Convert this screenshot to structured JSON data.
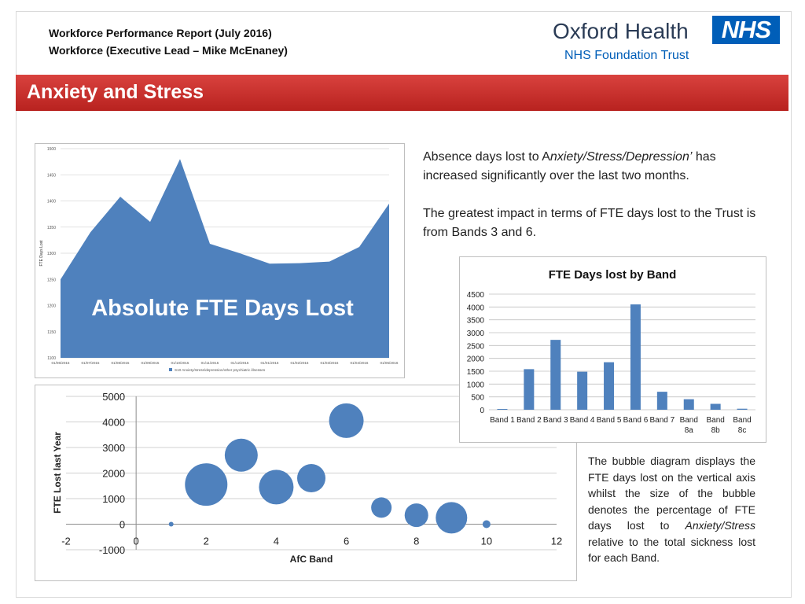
{
  "header": {
    "line1": "Workforce Performance Report (July 2016)",
    "line2": "Workforce (Executive Lead – Mike McEnaney)"
  },
  "logo": {
    "name": "Oxford Health",
    "subtitle": "NHS Foundation Trust",
    "badge": "NHS",
    "badge_color": "#005eb8"
  },
  "banner": {
    "title": "Anxiety and Stress",
    "color": "#c8302c"
  },
  "text": {
    "para1_pre": "Absence days lost to A",
    "para1_italic": "nxiety/Stress/Depression’",
    "para1_post": " has increased significantly over the last two months.",
    "para2": "The greatest impact in terms of FTE days lost to the Trust is from Bands 3 and 6.",
    "note_pre": "The bubble diagram  displays the FTE days lost on the vertical axis whilst the size of the bubble denotes the percentage of FTE days lost to ",
    "note_italic": "Anxiety/Stress",
    "note_post": " relative to the total sickness lost for each Band."
  },
  "chart_data": [
    {
      "type": "area",
      "overlay_title": "Absolute FTE Days Lost",
      "ylabel": "FTE Days Lost",
      "ylim": [
        1100,
        1500
      ],
      "yticks": [
        "1100",
        "1150",
        "1200",
        "1250",
        "1300",
        "1350",
        "1400",
        "1450",
        "1500"
      ],
      "xlabels": [
        "01/06/2015",
        "01/07/2015",
        "01/08/2015",
        "01/09/2015",
        "01/10/2015",
        "01/11/2015",
        "01/12/2015",
        "01/01/2016",
        "01/02/2016",
        "01/03/2016",
        "01/04/2016",
        "01/05/2016"
      ],
      "values": [
        1250,
        1340,
        1408,
        1360,
        1480,
        1318,
        1300,
        1280,
        1281,
        1284,
        1312,
        1395
      ],
      "legend": "S10 Anxiety/stress/depression/other psychiatric illnesses",
      "color": "#4f81bd"
    },
    {
      "type": "bar",
      "title": "FTE Days lost by Band",
      "categories": [
        [
          "Band 1"
        ],
        [
          "Band 2"
        ],
        [
          "Band 3"
        ],
        [
          "Band 4"
        ],
        [
          "Band 5"
        ],
        [
          "Band 6"
        ],
        [
          "Band 7"
        ],
        [
          "Band",
          "8a"
        ],
        [
          "Band",
          "8b"
        ],
        [
          "Band",
          "8c"
        ]
      ],
      "values": [
        30,
        1580,
        2720,
        1480,
        1850,
        4100,
        700,
        410,
        230,
        40
      ],
      "ylim": [
        0,
        4500
      ],
      "yticks": [
        "0",
        "500",
        "1000",
        "1500",
        "2000",
        "2500",
        "3000",
        "3500",
        "4000",
        "4500"
      ],
      "color": "#4f81bd"
    },
    {
      "type": "scatter",
      "xlabel": "AfC Band",
      "ylabel": "FTE Lost last  Year",
      "xlim": [
        -2,
        12
      ],
      "ylim": [
        -1000,
        5000
      ],
      "xticks": [
        "-2",
        "0",
        "2",
        "4",
        "6",
        "8",
        "10",
        "12"
      ],
      "yticks": [
        "-1000",
        "0",
        "1000",
        "2000",
        "3000",
        "4000",
        "5000"
      ],
      "points": [
        {
          "x": 1,
          "y": 0,
          "size": 3
        },
        {
          "x": 2,
          "y": 1550,
          "size": 27
        },
        {
          "x": 3,
          "y": 2700,
          "size": 21
        },
        {
          "x": 4,
          "y": 1450,
          "size": 22
        },
        {
          "x": 5,
          "y": 1800,
          "size": 18
        },
        {
          "x": 6,
          "y": 4050,
          "size": 22
        },
        {
          "x": 7,
          "y": 650,
          "size": 13
        },
        {
          "x": 8,
          "y": 350,
          "size": 15
        },
        {
          "x": 9,
          "y": 250,
          "size": 20
        },
        {
          "x": 10,
          "y": 0,
          "size": 5
        }
      ],
      "color": "#4f81bd"
    }
  ]
}
